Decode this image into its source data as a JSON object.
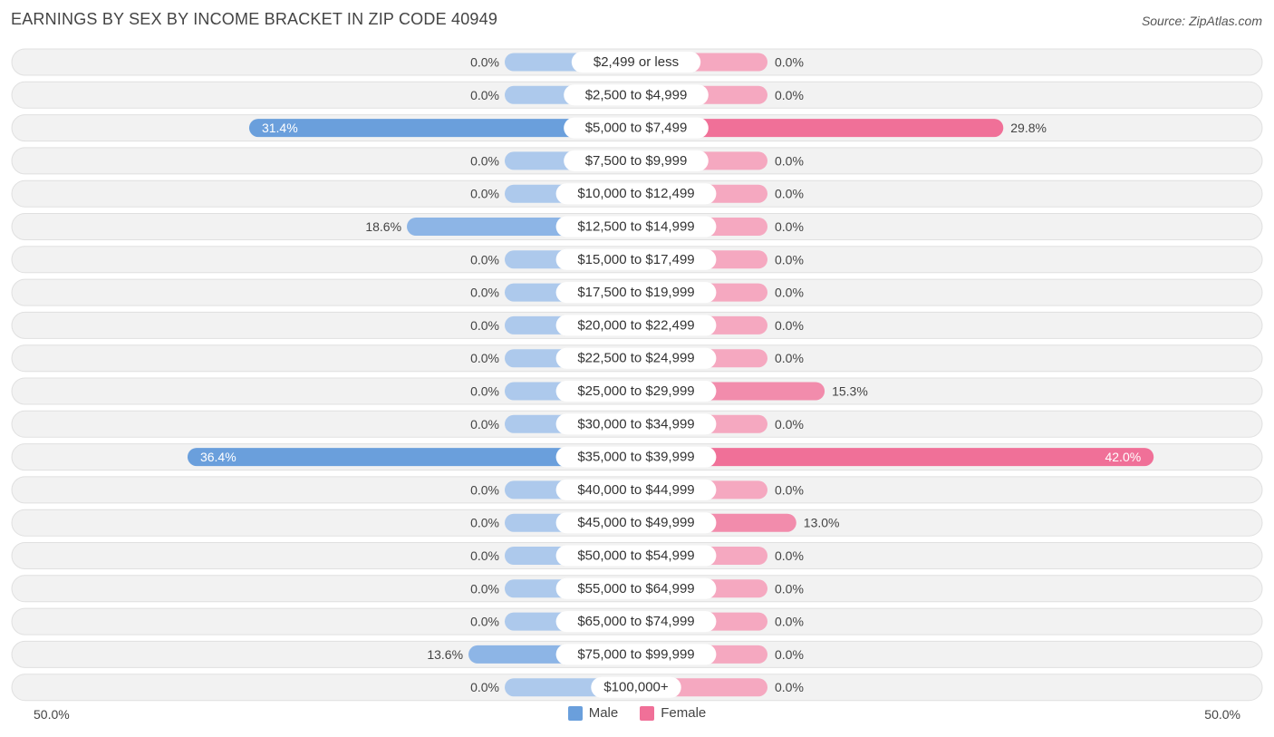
{
  "header": {
    "title": "EARNINGS BY SEX BY INCOME BRACKET IN ZIP CODE 40949",
    "source": "Source: ZipAtlas.com"
  },
  "colors": {
    "male": "#6a9fdc",
    "male_light": "#adc9ec",
    "female": "#f07098",
    "female_light": "#f5a8c0",
    "row_bg": "#f2f2f2",
    "row_border": "#e0e0e0"
  },
  "chart_data": {
    "type": "bar",
    "orientation": "horizontal-diverging",
    "title": "EARNINGS BY SEX BY INCOME BRACKET IN ZIP CODE 40949",
    "categories": [
      "$2,499 or less",
      "$2,500 to $4,999",
      "$5,000 to $7,499",
      "$7,500 to $9,999",
      "$10,000 to $12,499",
      "$12,500 to $14,999",
      "$15,000 to $17,499",
      "$17,500 to $19,999",
      "$20,000 to $22,499",
      "$22,500 to $24,999",
      "$25,000 to $29,999",
      "$30,000 to $34,999",
      "$35,000 to $39,999",
      "$40,000 to $44,999",
      "$45,000 to $49,999",
      "$50,000 to $54,999",
      "$55,000 to $64,999",
      "$65,000 to $74,999",
      "$75,000 to $99,999",
      "$100,000+"
    ],
    "series": [
      {
        "name": "Male",
        "values": [
          0.0,
          0.0,
          31.4,
          0.0,
          0.0,
          18.6,
          0.0,
          0.0,
          0.0,
          0.0,
          0.0,
          0.0,
          36.4,
          0.0,
          0.0,
          0.0,
          0.0,
          0.0,
          13.6,
          0.0
        ],
        "labels": [
          "0.0%",
          "0.0%",
          "31.4%",
          "0.0%",
          "0.0%",
          "18.6%",
          "0.0%",
          "0.0%",
          "0.0%",
          "0.0%",
          "0.0%",
          "0.0%",
          "36.4%",
          "0.0%",
          "0.0%",
          "0.0%",
          "0.0%",
          "0.0%",
          "13.6%",
          "0.0%"
        ]
      },
      {
        "name": "Female",
        "values": [
          0.0,
          0.0,
          29.8,
          0.0,
          0.0,
          0.0,
          0.0,
          0.0,
          0.0,
          0.0,
          15.3,
          0.0,
          42.0,
          0.0,
          13.0,
          0.0,
          0.0,
          0.0,
          0.0,
          0.0
        ],
        "labels": [
          "0.0%",
          "0.0%",
          "29.8%",
          "0.0%",
          "0.0%",
          "0.0%",
          "0.0%",
          "0.0%",
          "0.0%",
          "0.0%",
          "15.3%",
          "0.0%",
          "42.0%",
          "0.0%",
          "13.0%",
          "0.0%",
          "0.0%",
          "0.0%",
          "0.0%",
          "0.0%"
        ]
      }
    ],
    "xlim": [
      -50,
      50
    ],
    "axis_labels": {
      "left": "50.0%",
      "right": "50.0%"
    },
    "legend": [
      "Male",
      "Female"
    ],
    "legend_position": "bottom-center"
  }
}
